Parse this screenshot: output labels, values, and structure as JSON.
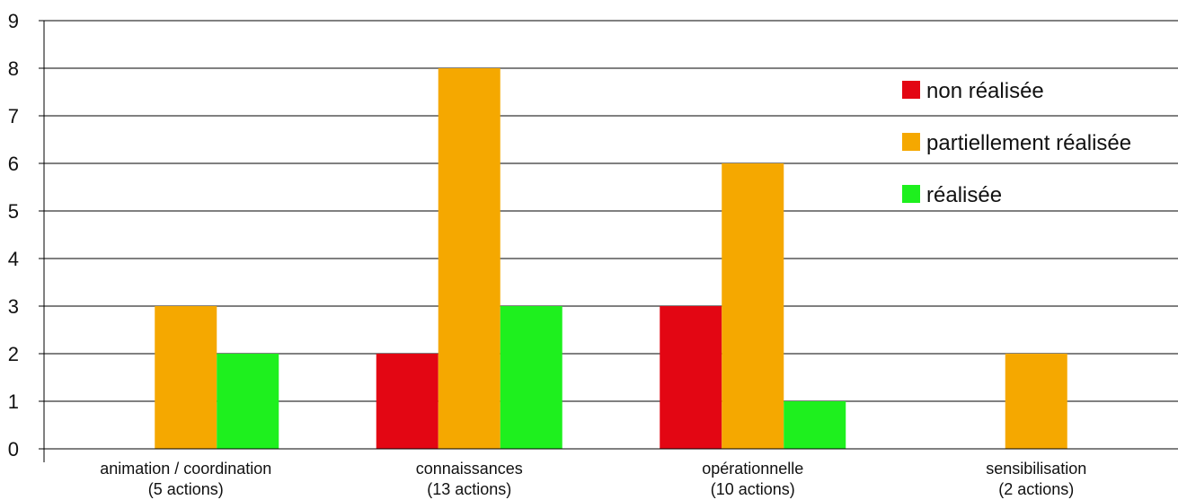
{
  "chart_data": {
    "type": "bar",
    "categories": [
      [
        "animation / coordination",
        "(5 actions)"
      ],
      [
        "connaissances",
        "(13 actions)"
      ],
      [
        "opérationnelle",
        "(10 actions)"
      ],
      [
        "sensibilisation",
        "(2 actions)"
      ]
    ],
    "series": [
      {
        "name": "non réalisée",
        "color": "#e30613",
        "values": [
          0,
          2,
          3,
          0
        ]
      },
      {
        "name": "partiellement réalisée",
        "color": "#f5a800",
        "values": [
          3,
          8,
          6,
          2
        ]
      },
      {
        "name": "réalisée",
        "color": "#1ef01e",
        "values": [
          2,
          3,
          1,
          0
        ]
      }
    ],
    "ylim": [
      0,
      9
    ],
    "yticks": [
      0,
      1,
      2,
      3,
      4,
      5,
      6,
      7,
      8,
      9
    ],
    "grid": true,
    "legend_position": "top-right"
  }
}
